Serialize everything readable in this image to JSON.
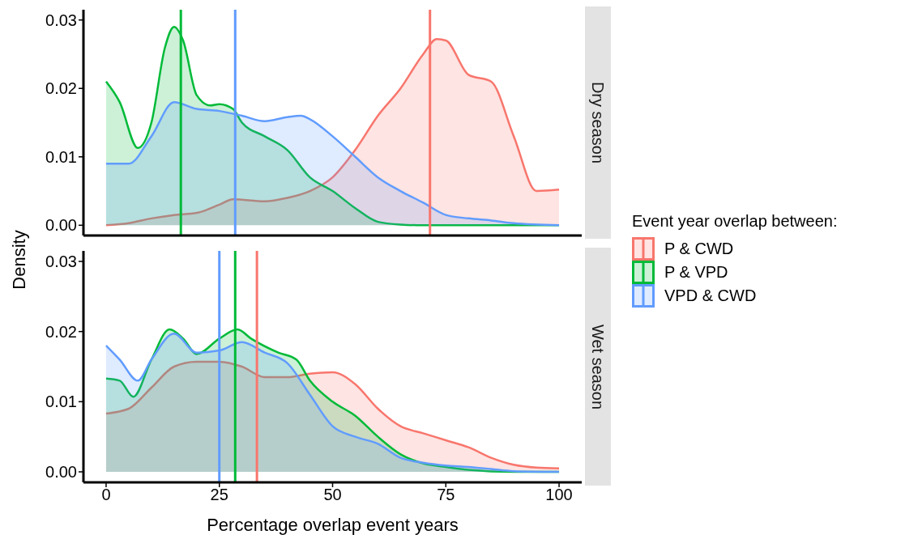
{
  "chart_data": [
    {
      "type": "area",
      "title": "Dry season",
      "ylabel": "Density",
      "legend": "right",
      "legend_title": "Event year overlap between:",
      "tick_labels": "y",
      "xlim": [
        -5,
        105
      ],
      "xticks": [
        0,
        25,
        50,
        75,
        100
      ],
      "ylim": [
        -0.0015,
        0.0315
      ],
      "yticks": [
        {
          "value": 0,
          "label": "0.00"
        },
        {
          "value": 0.01,
          "label": "0.01"
        },
        {
          "value": 0.02,
          "label": "0.02"
        },
        {
          "value": 0.03,
          "label": "0.03"
        }
      ],
      "grid": false,
      "series": [
        {
          "name": "P & CWD",
          "color": "#f8766d",
          "x": [
            0,
            5,
            10,
            15,
            20,
            25,
            28,
            35,
            40,
            45,
            50,
            55,
            60,
            65,
            70,
            73,
            75,
            80,
            85,
            90,
            95,
            100
          ],
          "values": [
            0,
            0.0003,
            0.001,
            0.0015,
            0.0018,
            0.003,
            0.0038,
            0.0035,
            0.004,
            0.005,
            0.007,
            0.011,
            0.016,
            0.02,
            0.025,
            0.0272,
            0.027,
            0.022,
            0.021,
            0.013,
            0.005,
            0.0052
          ]
        },
        {
          "name": "P & VPD",
          "color": "#00ba38",
          "x": [
            0,
            3,
            7,
            10,
            13,
            15,
            17,
            20,
            23,
            25,
            28,
            30,
            35,
            40,
            45,
            50,
            55,
            60,
            65,
            70,
            100
          ],
          "values": [
            0.021,
            0.018,
            0.0113,
            0.015,
            0.026,
            0.029,
            0.027,
            0.019,
            0.0175,
            0.0177,
            0.017,
            0.015,
            0.013,
            0.011,
            0.007,
            0.005,
            0.0025,
            0.0005,
            0.0001,
            0,
            0
          ]
        },
        {
          "name": "VPD & CWD",
          "color": "#619cff",
          "x": [
            0,
            5,
            10,
            15,
            20,
            25,
            30,
            35,
            40,
            43,
            45,
            50,
            55,
            60,
            65,
            70,
            75,
            80,
            85,
            90,
            100
          ],
          "values": [
            0.009,
            0.009,
            0.013,
            0.018,
            0.017,
            0.0167,
            0.016,
            0.0152,
            0.0158,
            0.016,
            0.0155,
            0.013,
            0.01,
            0.007,
            0.005,
            0.0033,
            0.0015,
            0.001,
            0.0007,
            0.0003,
            0
          ]
        }
      ],
      "ref_lines": [
        {
          "axis": "x",
          "value": 16.5,
          "color": "#00ba38"
        },
        {
          "axis": "x",
          "value": 28.5,
          "color": "#619cff"
        },
        {
          "axis": "x",
          "value": 71.5,
          "color": "#f8766d"
        }
      ]
    },
    {
      "type": "area",
      "title": "Wet season",
      "xlabel": "Percentage overlap event years",
      "xlim": [
        -5,
        105
      ],
      "xticks": [
        0,
        25,
        50,
        75,
        100
      ],
      "ylim": [
        -0.0015,
        0.0315
      ],
      "yticks": [
        {
          "value": 0,
          "label": "0.00"
        },
        {
          "value": 0.01,
          "label": "0.01"
        },
        {
          "value": 0.02,
          "label": "0.02"
        },
        {
          "value": 0.03,
          "label": "0.03"
        }
      ],
      "grid": false,
      "series": [
        {
          "color": "#f8766d",
          "x": [
            0,
            5,
            10,
            15,
            20,
            25,
            30,
            35,
            40,
            45,
            50,
            55,
            60,
            65,
            70,
            75,
            80,
            85,
            90,
            95,
            100
          ],
          "values": [
            0.0083,
            0.009,
            0.012,
            0.015,
            0.0157,
            0.0157,
            0.015,
            0.0135,
            0.0135,
            0.014,
            0.0142,
            0.0125,
            0.009,
            0.0065,
            0.0055,
            0.0045,
            0.0035,
            0.002,
            0.001,
            0.0006,
            0.0005
          ]
        },
        {
          "color": "#00ba38",
          "x": [
            0,
            3,
            6,
            10,
            14,
            17,
            20,
            25,
            29,
            32,
            38,
            42,
            45,
            50,
            55,
            60,
            65,
            70,
            75,
            80,
            90,
            100
          ],
          "values": [
            0.0133,
            0.013,
            0.0107,
            0.016,
            0.0203,
            0.019,
            0.0168,
            0.019,
            0.0203,
            0.019,
            0.017,
            0.016,
            0.013,
            0.01,
            0.008,
            0.005,
            0.0025,
            0.0012,
            0.0007,
            0.0003,
            0,
            0
          ]
        },
        {
          "color": "#619cff",
          "x": [
            0,
            3,
            7,
            10,
            15,
            20,
            25,
            30,
            35,
            40,
            45,
            50,
            55,
            60,
            65,
            70,
            75,
            80,
            85,
            90,
            100
          ],
          "values": [
            0.018,
            0.016,
            0.013,
            0.016,
            0.0197,
            0.017,
            0.0173,
            0.0185,
            0.017,
            0.0155,
            0.011,
            0.0065,
            0.005,
            0.004,
            0.002,
            0.0013,
            0.0009,
            0.0007,
            0.0004,
            0.0001,
            0
          ]
        }
      ],
      "ref_lines": [
        {
          "axis": "x",
          "value": 25,
          "color": "#619cff"
        },
        {
          "axis": "x",
          "value": 28.5,
          "color": "#00ba38"
        },
        {
          "axis": "x",
          "value": 33.3,
          "color": "#f8766d"
        }
      ]
    }
  ]
}
